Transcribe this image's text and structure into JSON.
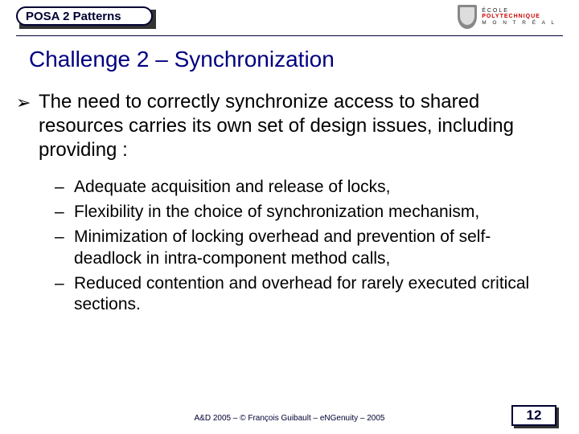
{
  "badge": {
    "label": "POSA 2 Patterns"
  },
  "logo": {
    "line1": "ÉCOLE",
    "line2": "POLYTECHNIQUE",
    "line3": "M O N T R É A L"
  },
  "title": "Challenge 2 – Synchronization",
  "main_bullet": {
    "marker": "➢",
    "text": "The need to correctly synchronize access to shared resources carries its own set of design issues, including providing :"
  },
  "sub_bullets": [
    {
      "marker": "–",
      "text": "Adequate acquisition and release of locks,"
    },
    {
      "marker": "–",
      "text": "Flexibility in the choice of synchronization mechanism,"
    },
    {
      "marker": "–",
      "text": "Minimization of locking overhead and prevention of self-deadlock in intra-component method calls,"
    },
    {
      "marker": "–",
      "text": "Reduced contention and overhead for rarely executed critical sections."
    }
  ],
  "footer": "A&D 2005 – ©  François Guibault – eNGenuity – 2005",
  "page_number": "12",
  "colors": {
    "title": "#000080",
    "border": "#000033",
    "text": "#000000",
    "background": "#ffffff",
    "logo_red": "#c00000"
  }
}
